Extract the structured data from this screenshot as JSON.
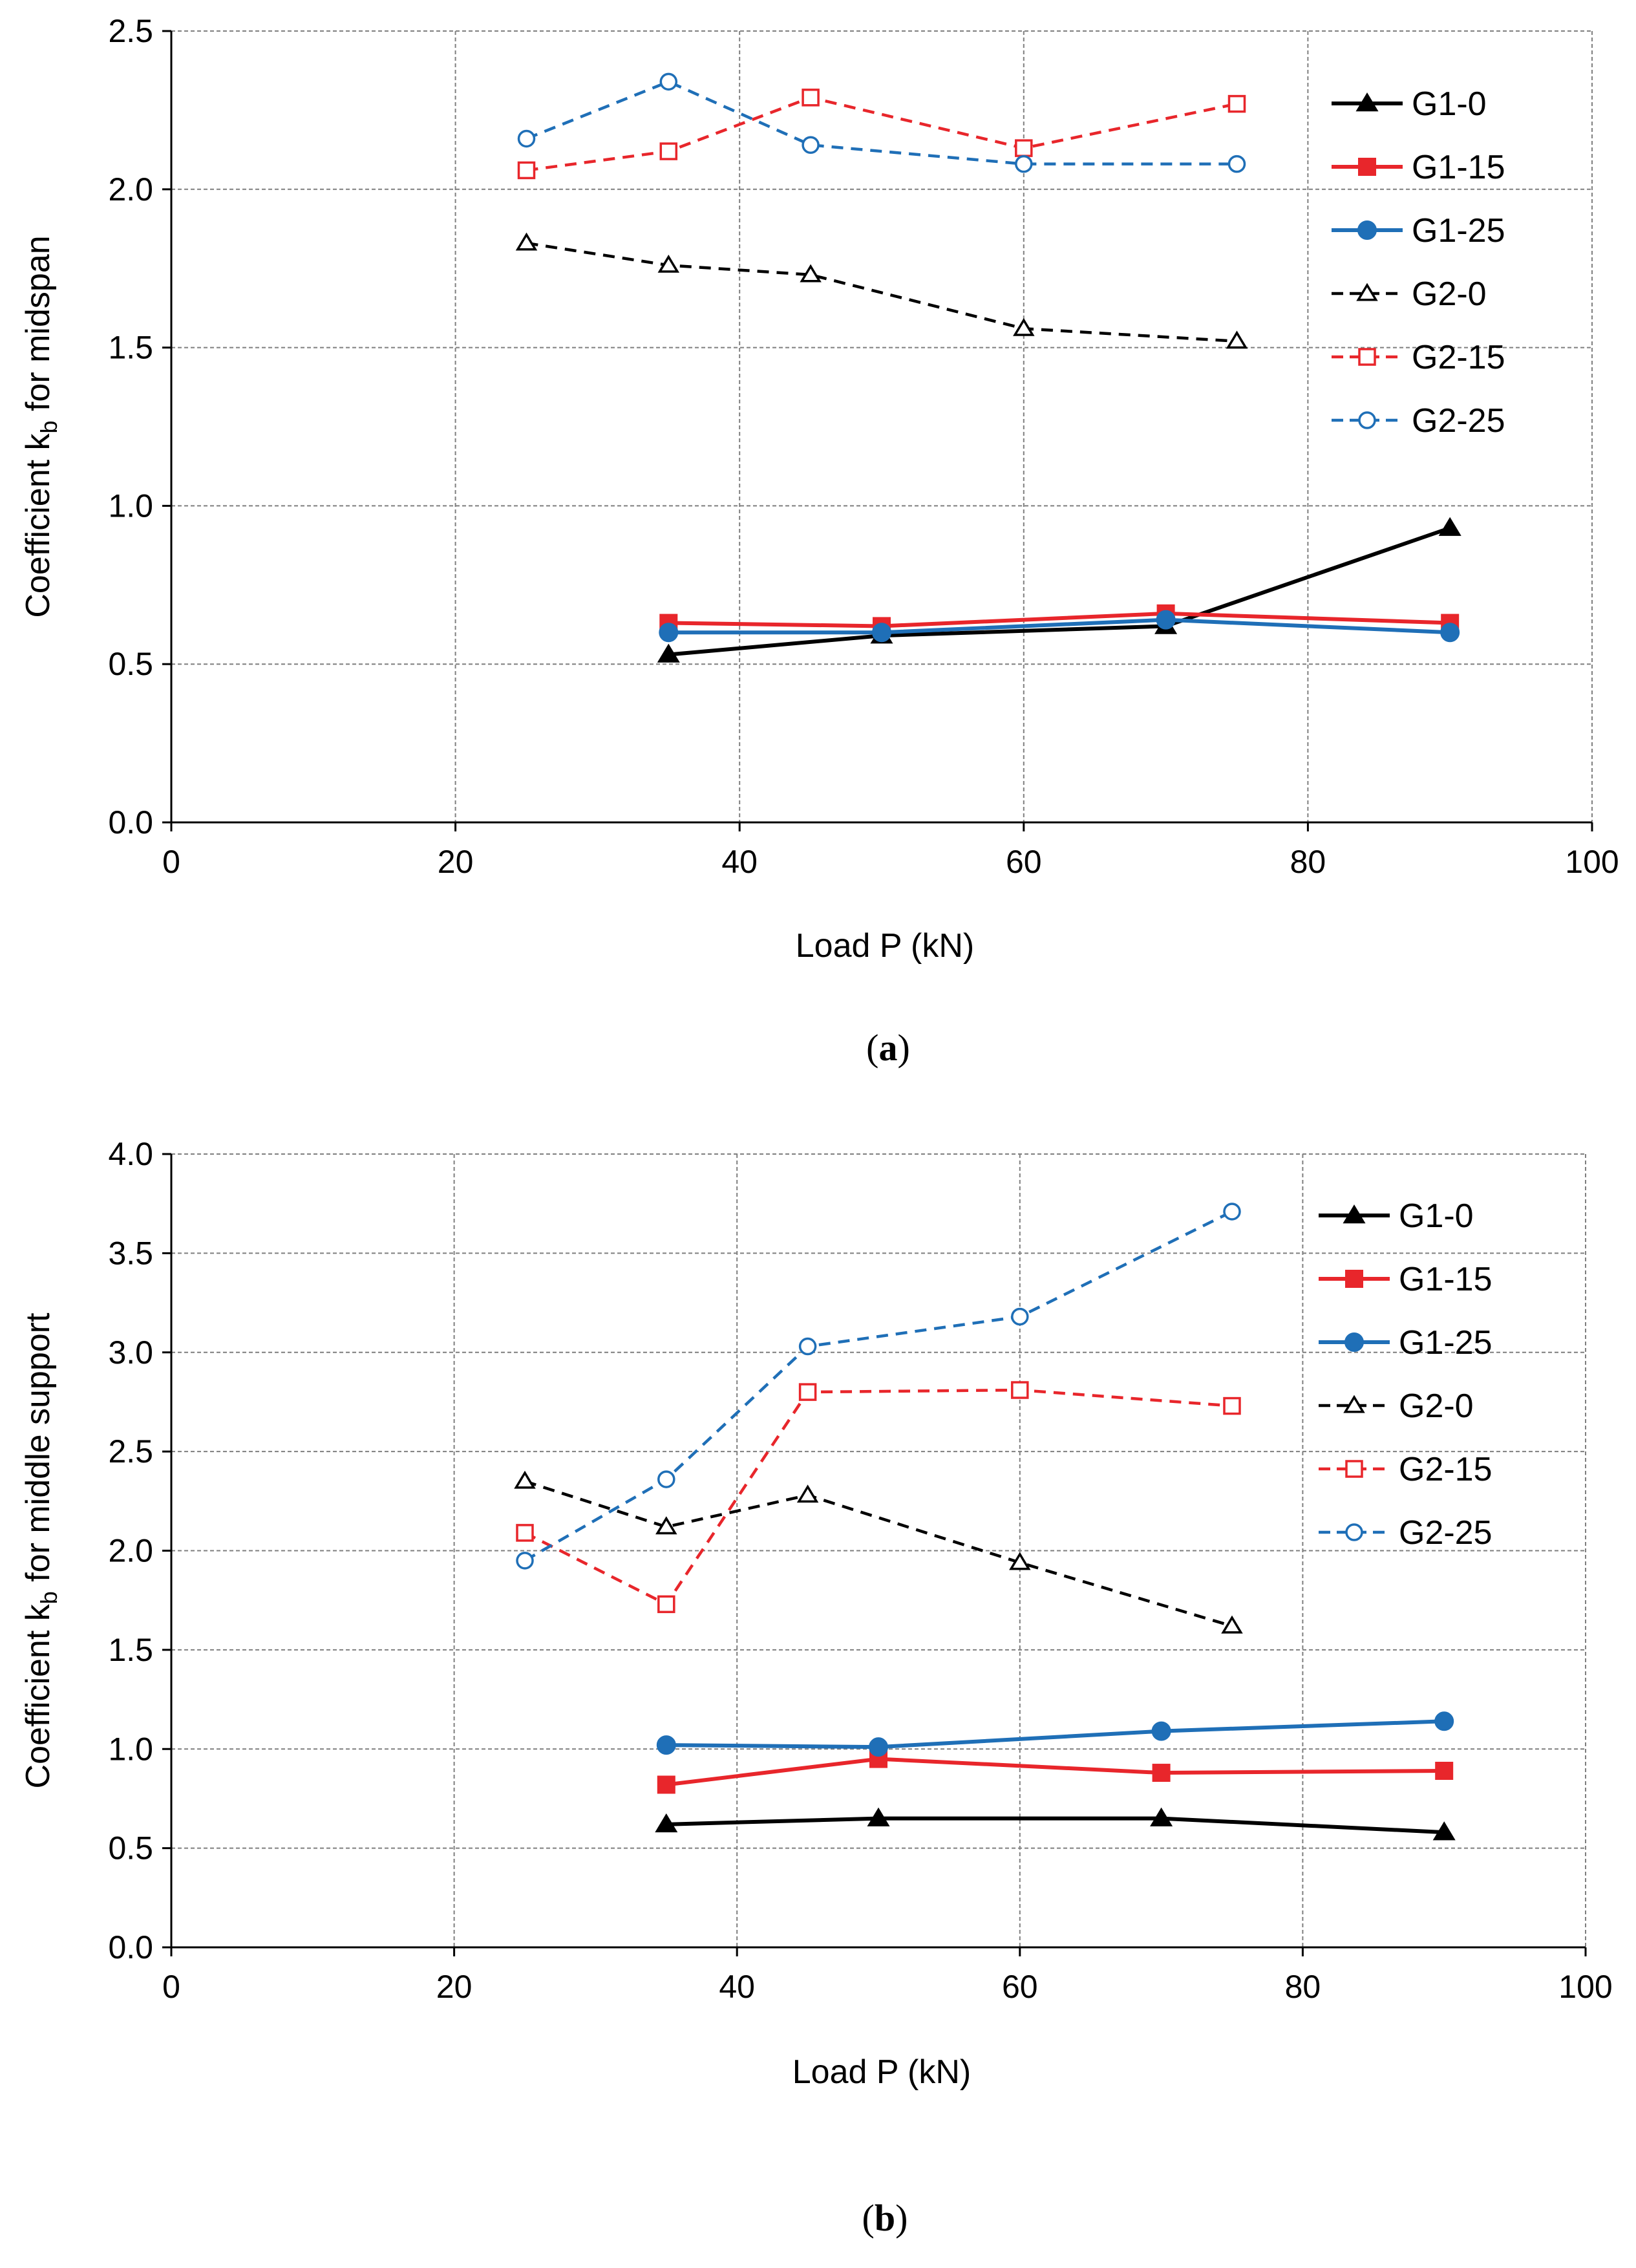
{
  "chart_data": [
    {
      "type": "line",
      "caption_open": "(",
      "caption_letter": "a",
      "caption_close": ")",
      "xlabel": "Load P (kN)",
      "ylabel_main": "Coefficient k",
      "ylabel_sub": "b",
      "ylabel_rest": " for midspan",
      "xlim": [
        0,
        100
      ],
      "ylim": [
        0,
        2.5
      ],
      "xticks": [
        0,
        20,
        40,
        60,
        80,
        100
      ],
      "yticks": [
        0,
        0.5,
        1.0,
        1.5,
        2.0,
        2.5
      ],
      "ytick_labels": [
        "0.0",
        "0.5",
        "1.0",
        "1.5",
        "2.0",
        "2.5"
      ],
      "grid": true,
      "legend_position": "right",
      "series": [
        {
          "name": "G1-0",
          "color": "#000000",
          "dash": "solid",
          "marker": "triangle",
          "filled": true,
          "points": [
            [
              35,
              0.53
            ],
            [
              50,
              0.59
            ],
            [
              70,
              0.62
            ],
            [
              90,
              0.93
            ]
          ]
        },
        {
          "name": "G1-15",
          "color": "#e8262b",
          "dash": "solid",
          "marker": "square",
          "filled": true,
          "points": [
            [
              35,
              0.63
            ],
            [
              50,
              0.62
            ],
            [
              70,
              0.66
            ],
            [
              90,
              0.63
            ]
          ]
        },
        {
          "name": "G1-25",
          "color": "#1f6fb7",
          "dash": "solid",
          "marker": "circle",
          "filled": true,
          "points": [
            [
              35,
              0.6
            ],
            [
              50,
              0.6
            ],
            [
              70,
              0.64
            ],
            [
              90,
              0.6
            ]
          ]
        },
        {
          "name": "G2-0",
          "color": "#000000",
          "dash": "dashed",
          "marker": "triangle",
          "filled": false,
          "points": [
            [
              25,
              1.83
            ],
            [
              35,
              1.76
            ],
            [
              45,
              1.73
            ],
            [
              60,
              1.56
            ],
            [
              75,
              1.52
            ]
          ]
        },
        {
          "name": "G2-15",
          "color": "#e8262b",
          "dash": "dashed",
          "marker": "square",
          "filled": false,
          "points": [
            [
              25,
              2.06
            ],
            [
              35,
              2.12
            ],
            [
              45,
              2.29
            ],
            [
              60,
              2.13
            ],
            [
              75,
              2.27
            ]
          ]
        },
        {
          "name": "G2-25",
          "color": "#1f6fb7",
          "dash": "dashed",
          "marker": "circle",
          "filled": false,
          "points": [
            [
              25,
              2.16
            ],
            [
              35,
              2.34
            ],
            [
              45,
              2.14
            ],
            [
              60,
              2.08
            ],
            [
              75,
              2.08
            ]
          ]
        }
      ]
    },
    {
      "type": "line",
      "caption_open": "(",
      "caption_letter": "b",
      "caption_close": ")",
      "xlabel": "Load P (kN)",
      "ylabel_main": "Coefficient  k",
      "ylabel_sub": "b",
      "ylabel_rest": " for middle support",
      "xlim": [
        0,
        100
      ],
      "ylim": [
        0,
        4.0
      ],
      "xticks": [
        0,
        20,
        40,
        60,
        80,
        100
      ],
      "yticks": [
        0,
        0.5,
        1.0,
        1.5,
        2.0,
        2.5,
        3.0,
        3.5,
        4.0
      ],
      "ytick_labels": [
        "0.0",
        "0.5",
        "1.0",
        "1.5",
        "2.0",
        "2.5",
        "3.0",
        "3.5",
        "4.0"
      ],
      "grid": true,
      "legend_position": "right",
      "series": [
        {
          "name": "G1-0",
          "color": "#000000",
          "dash": "solid",
          "marker": "triangle",
          "filled": true,
          "points": [
            [
              35,
              0.62
            ],
            [
              50,
              0.65
            ],
            [
              70,
              0.65
            ],
            [
              90,
              0.58
            ]
          ]
        },
        {
          "name": "G1-15",
          "color": "#e8262b",
          "dash": "solid",
          "marker": "square",
          "filled": true,
          "points": [
            [
              35,
              0.82
            ],
            [
              50,
              0.95
            ],
            [
              70,
              0.88
            ],
            [
              90,
              0.89
            ]
          ]
        },
        {
          "name": "G1-25",
          "color": "#1f6fb7",
          "dash": "solid",
          "marker": "circle",
          "filled": true,
          "points": [
            [
              35,
              1.02
            ],
            [
              50,
              1.01
            ],
            [
              70,
              1.09
            ],
            [
              90,
              1.14
            ]
          ]
        },
        {
          "name": "G2-0",
          "color": "#000000",
          "dash": "dashed",
          "marker": "triangle",
          "filled": false,
          "points": [
            [
              25,
              2.35
            ],
            [
              35,
              2.12
            ],
            [
              45,
              2.28
            ],
            [
              60,
              1.94
            ],
            [
              75,
              1.62
            ]
          ]
        },
        {
          "name": "G2-15",
          "color": "#e8262b",
          "dash": "dashed",
          "marker": "square",
          "filled": false,
          "points": [
            [
              25,
              2.09
            ],
            [
              35,
              1.73
            ],
            [
              45,
              2.8
            ],
            [
              60,
              2.81
            ],
            [
              75,
              2.73
            ]
          ]
        },
        {
          "name": "G2-25",
          "color": "#1f6fb7",
          "dash": "dashed",
          "marker": "circle",
          "filled": false,
          "points": [
            [
              25,
              1.95
            ],
            [
              35,
              2.36
            ],
            [
              45,
              3.03
            ],
            [
              60,
              3.18
            ],
            [
              75,
              3.71
            ]
          ]
        }
      ]
    }
  ]
}
